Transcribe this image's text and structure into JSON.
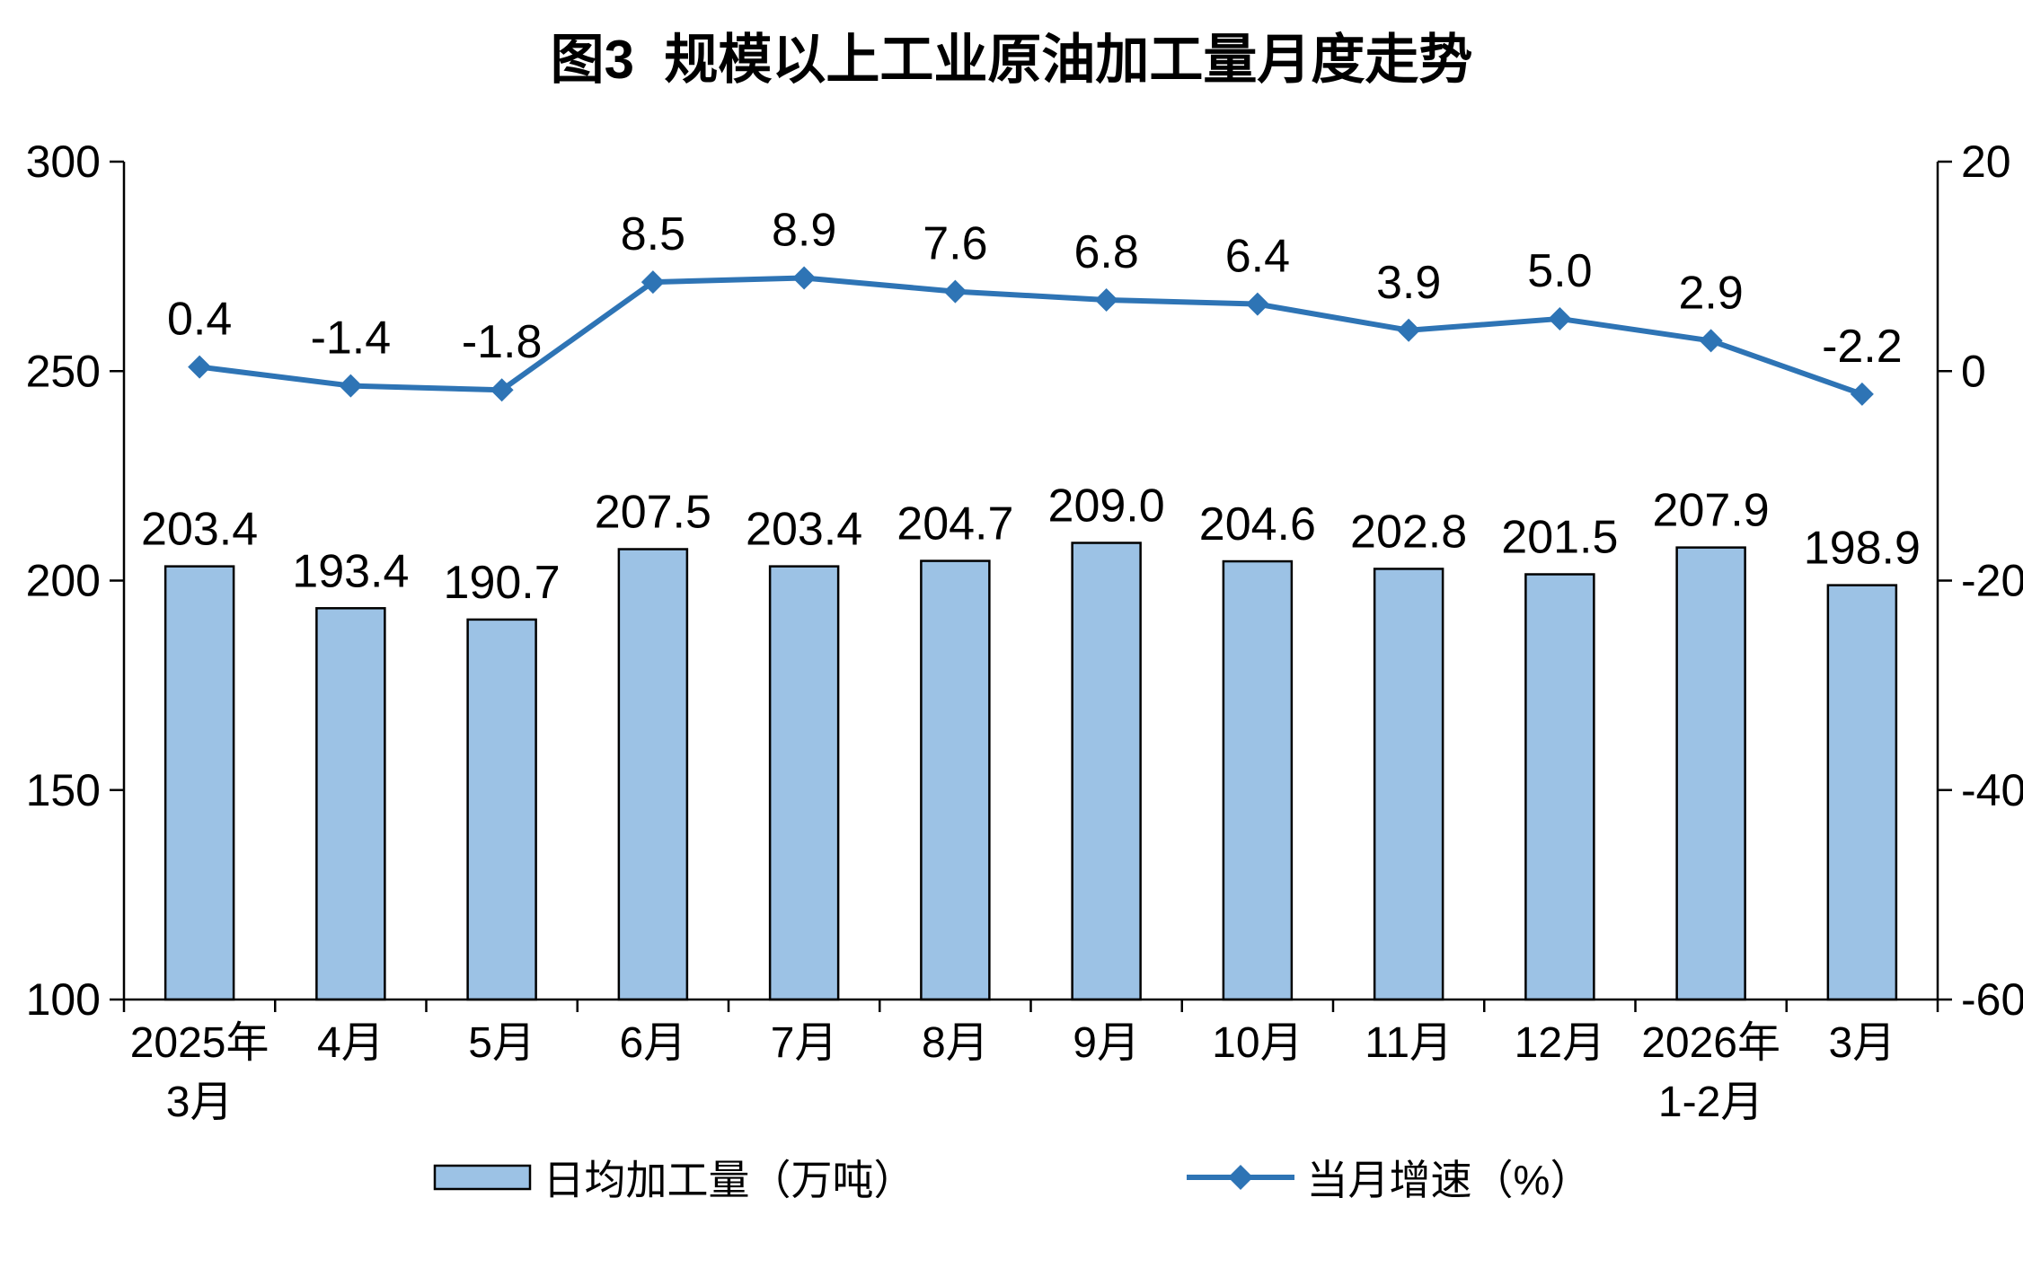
{
  "title": "图3  规模以上工业原油加工量月度走势",
  "chart_data": {
    "type": "bar+line combo",
    "title": "图3  规模以上工业原油加工量月度走势",
    "categories": [
      [
        "2025年",
        "3月"
      ],
      [
        "4月"
      ],
      [
        "5月"
      ],
      [
        "6月"
      ],
      [
        "7月"
      ],
      [
        "8月"
      ],
      [
        "9月"
      ],
      [
        "10月"
      ],
      [
        "11月"
      ],
      [
        "12月"
      ],
      [
        "2026年",
        "1-2月"
      ],
      [
        "3月"
      ]
    ],
    "series": [
      {
        "name": "日均加工量（万吨）",
        "type": "bar",
        "axis": "left",
        "color": "#9CC2E5",
        "border_color": "#000000",
        "values": [
          203.4,
          193.4,
          190.7,
          207.5,
          203.4,
          204.7,
          209.0,
          204.6,
          202.8,
          201.5,
          207.9,
          198.9
        ]
      },
      {
        "name": "当月增速（%）",
        "type": "line",
        "axis": "right",
        "color": "#2E74B5",
        "marker": "diamond",
        "values": [
          0.4,
          -1.4,
          -1.8,
          8.5,
          8.9,
          7.6,
          6.8,
          6.4,
          3.9,
          5.0,
          2.9,
          -2.2
        ]
      }
    ],
    "left_axis": {
      "min": 100,
      "max": 300,
      "ticks": [
        100,
        150,
        200,
        250,
        300
      ]
    },
    "right_axis": {
      "min": -60,
      "max": 20,
      "ticks": [
        -60,
        -40,
        -20,
        0,
        20
      ]
    },
    "grid": false,
    "legend_position": "bottom",
    "axis_color": "#000000",
    "text_color": "#000000"
  }
}
